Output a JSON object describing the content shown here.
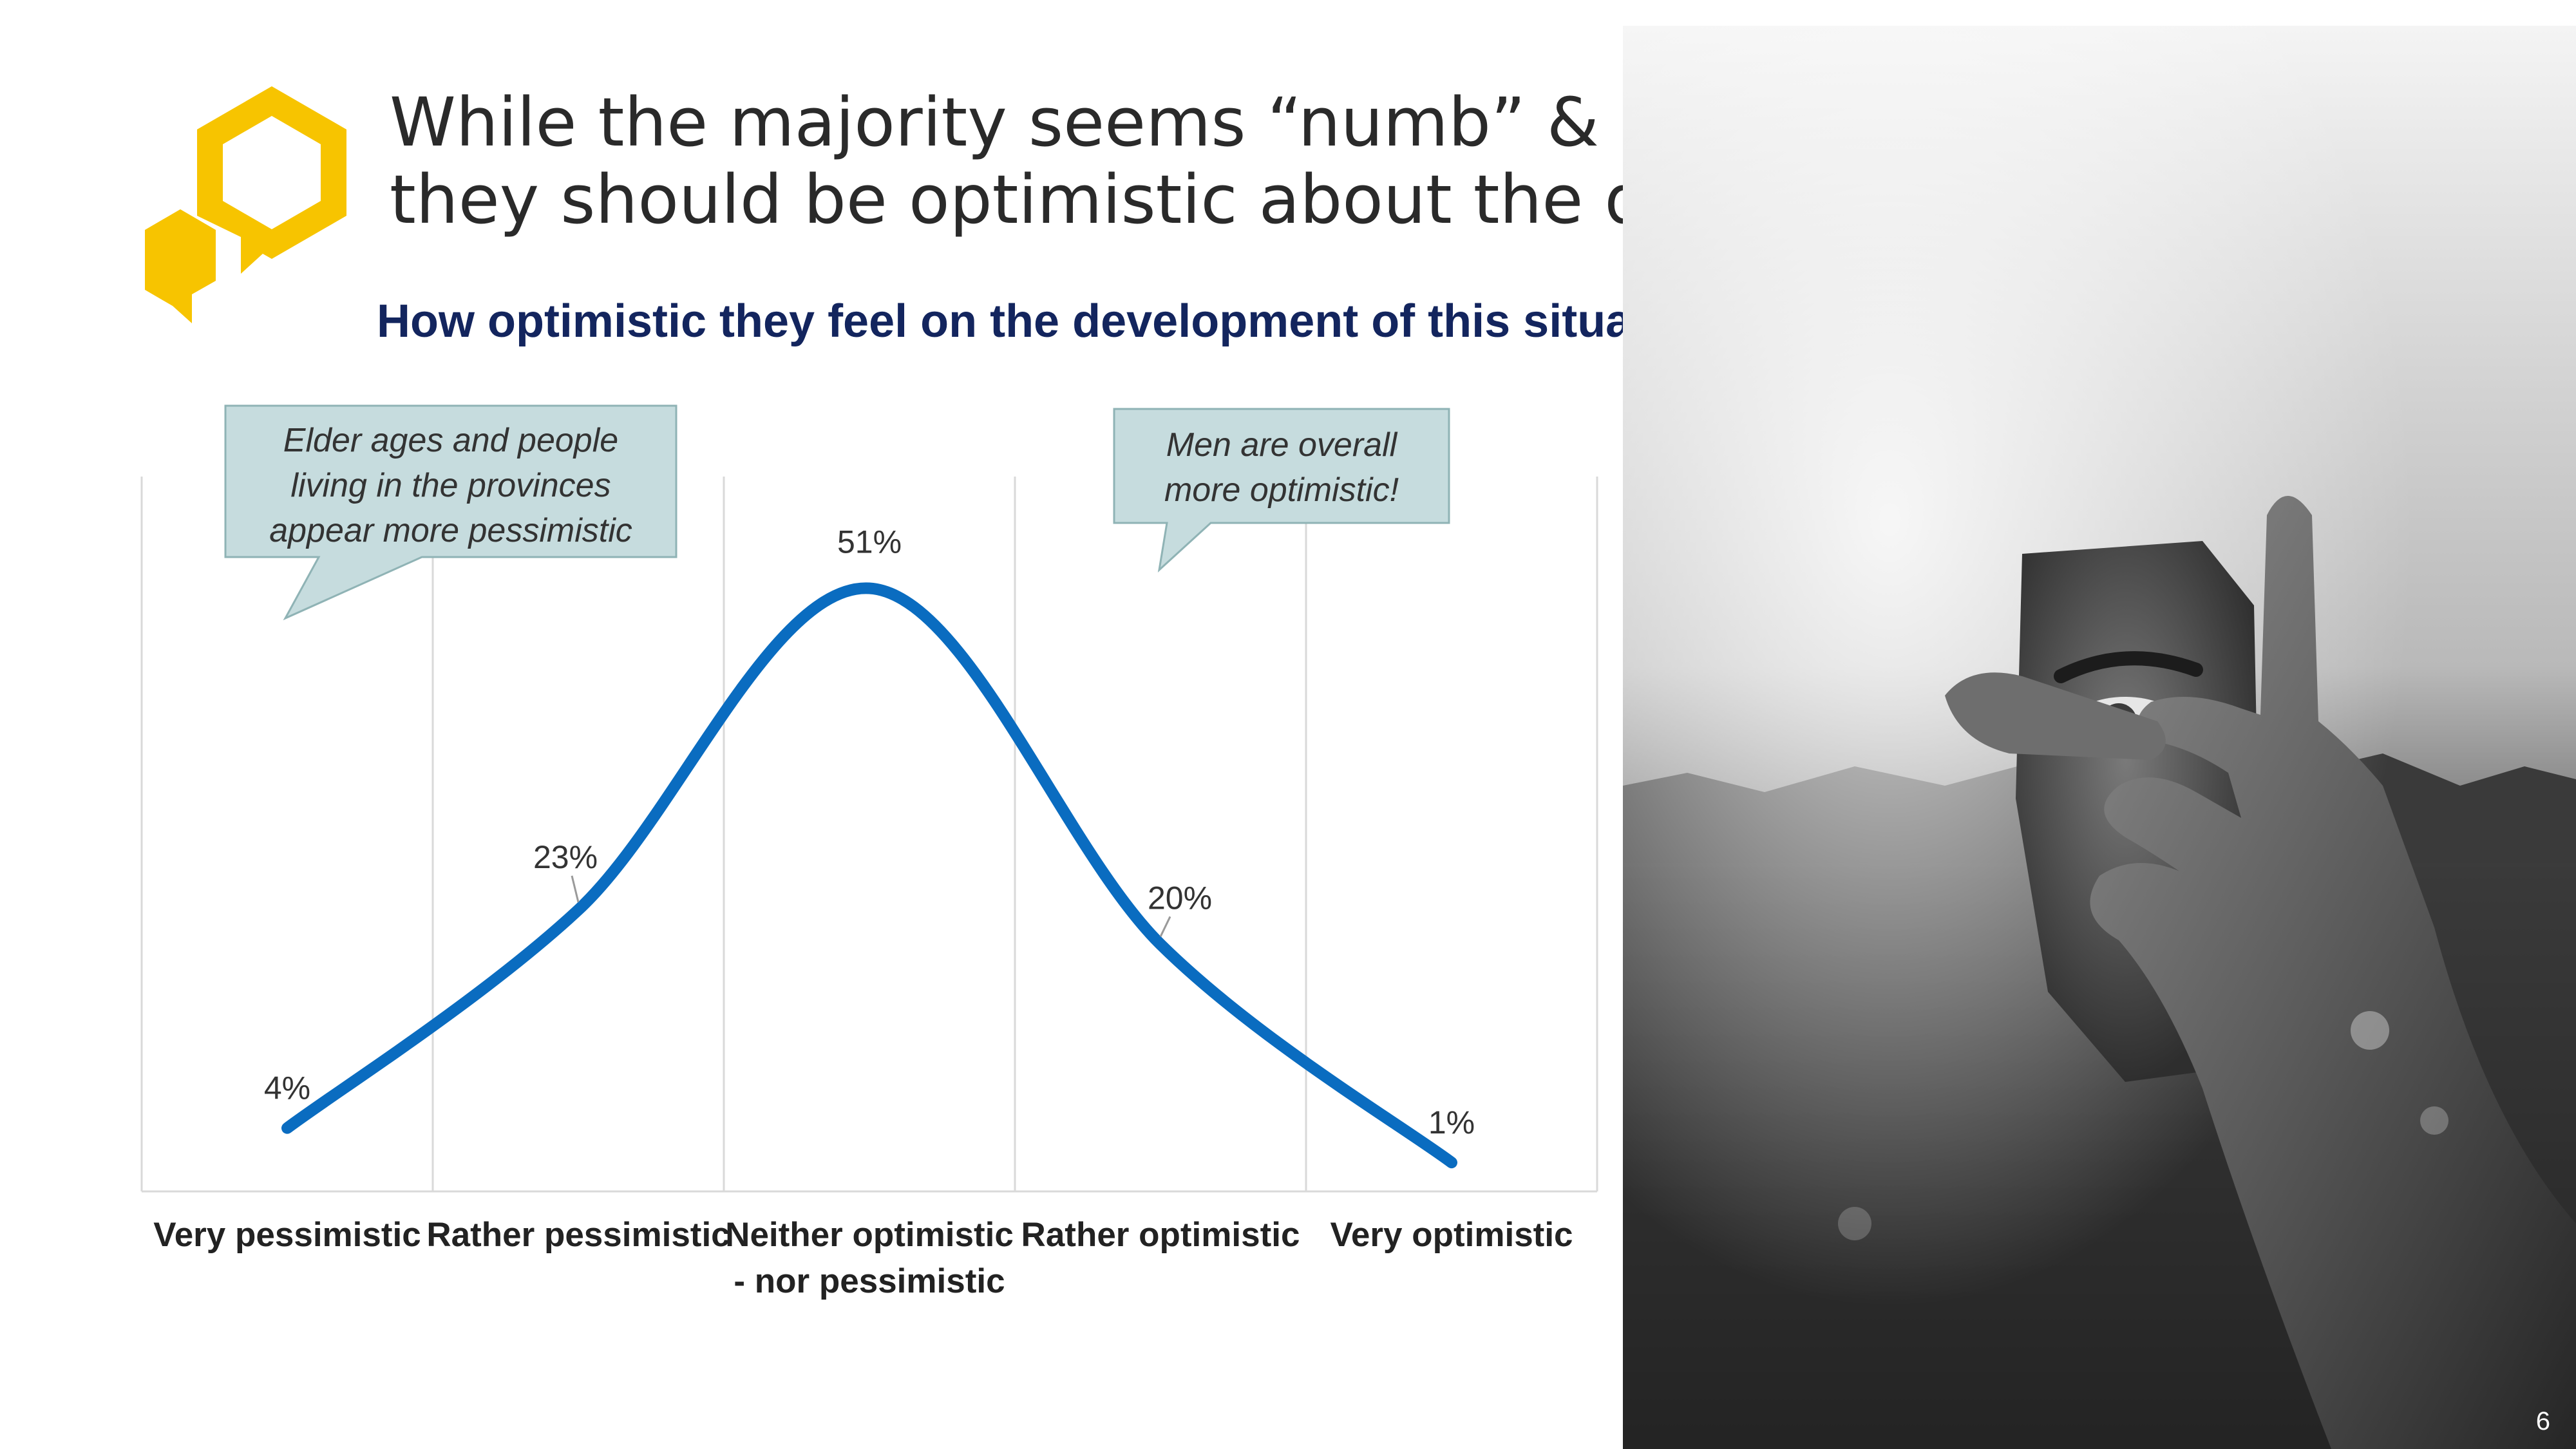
{
  "slide": {
    "title_lines": [
      "While the majority seems “numb” & undecided as to whether",
      "they should be optimistic about the development of the crisis"
    ],
    "subtitle": "How optimistic they feel on the development of this situation",
    "page_number": "6"
  },
  "callouts": [
    {
      "lines": [
        "Elder ages and people",
        "living in the provinces",
        "appear more pessimistic"
      ]
    },
    {
      "lines": [
        "Men are overall",
        "more optimistic!"
      ]
    }
  ],
  "colors": {
    "line": "#0a6cc0",
    "callout_fill": "#c6dcde",
    "callout_border": "#8fb3b5",
    "logo": "#f7c400",
    "subtitle": "#13255e",
    "gridline": "#d9d9d9"
  },
  "chart_data": {
    "type": "line",
    "smooth": true,
    "categories": [
      "Very pessimistic",
      "Rather pessimistic",
      "Neither optimistic - nor pessimistic",
      "Rather optimistic",
      "Very optimistic"
    ],
    "category_label_lines": [
      [
        "Very pessimistic"
      ],
      [
        "Rather pessimistic"
      ],
      [
        "Neither optimistic",
        "- nor pessimistic"
      ],
      [
        "Rather optimistic"
      ],
      [
        "Very optimistic"
      ]
    ],
    "values": [
      4,
      23,
      51,
      20,
      1
    ],
    "data_labels": [
      "4%",
      "23%",
      "51%",
      "20%",
      "1%"
    ],
    "ylim": [
      0,
      60
    ],
    "grid": "vertical",
    "legend": "none"
  }
}
